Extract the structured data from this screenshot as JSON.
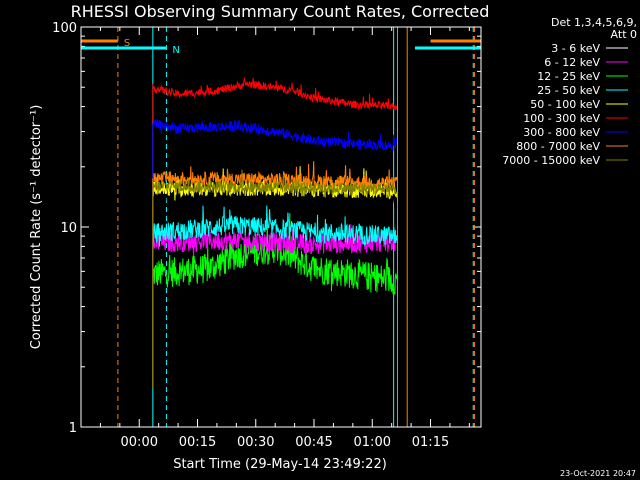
{
  "chart_data": {
    "type": "line",
    "title": "RHESSI Observing Summary Count Rates, Corrected",
    "xlabel": "Start Time (29-May-14 23:49:22)",
    "ylabel": "Corrected Count Rate (s⁻¹ detector⁻¹)",
    "y_scale": "log",
    "ylim": [
      1,
      100
    ],
    "xlim_minutes": [
      -15,
      88
    ],
    "x_ticks": [
      {
        "m": 0,
        "label": "00:00"
      },
      {
        "m": 15,
        "label": "00:15"
      },
      {
        "m": 30,
        "label": "00:30"
      },
      {
        "m": 45,
        "label": "00:45"
      },
      {
        "m": 60,
        "label": "01:00"
      },
      {
        "m": 75,
        "label": "01:15"
      }
    ],
    "y_ticks": [
      {
        "v": 1,
        "label": "1"
      },
      {
        "v": 10,
        "label": "10"
      },
      {
        "v": 100,
        "label": "100"
      }
    ],
    "legend_header": [
      "Det 1,3,4,5,6,9,",
      "Att 0"
    ],
    "legend_position": "top-right, outside plot",
    "series": [
      {
        "name": "3 - 6 keV",
        "color": "#000000",
        "base": 14.5,
        "spread": 0.12,
        "profile": [
          [
            3,
            14.5
          ],
          [
            20,
            15
          ],
          [
            40,
            14.5
          ],
          [
            55,
            13.8
          ],
          [
            66,
            13.5
          ]
        ]
      },
      {
        "name": "6 - 12 keV",
        "color": "#ff00ff",
        "base": 8.3,
        "spread": 0.1,
        "profile": [
          [
            3,
            8.3
          ],
          [
            25,
            8.6
          ],
          [
            45,
            8.2
          ],
          [
            66,
            8.4
          ]
        ]
      },
      {
        "name": "12 - 25 keV",
        "color": "#00ff00",
        "base": 6.0,
        "spread": 0.15,
        "profile": [
          [
            3,
            5.8
          ],
          [
            18,
            6.2
          ],
          [
            25,
            7.3
          ],
          [
            35,
            7.8
          ],
          [
            45,
            6.2
          ],
          [
            66,
            5.4
          ]
        ]
      },
      {
        "name": "25 - 50 keV",
        "color": "#00ffff",
        "base": 9.5,
        "spread": 0.1,
        "profile": [
          [
            3,
            9.3
          ],
          [
            25,
            10.2
          ],
          [
            45,
            9.4
          ],
          [
            66,
            9.0
          ]
        ]
      },
      {
        "name": "50 - 100 keV",
        "color": "#ffff00",
        "base": 15.0,
        "spread": 0.08,
        "profile": [
          [
            3,
            15.5
          ],
          [
            30,
            15.6
          ],
          [
            66,
            15.2
          ]
        ]
      },
      {
        "name": "100 - 300 keV",
        "color": "#ff0000",
        "base": 43,
        "spread": 0.04,
        "profile": [
          [
            3,
            50
          ],
          [
            10,
            46
          ],
          [
            20,
            48
          ],
          [
            28,
            52
          ],
          [
            40,
            48
          ],
          [
            45,
            44
          ],
          [
            55,
            41
          ],
          [
            66,
            40
          ]
        ]
      },
      {
        "name": "300 - 800 keV",
        "color": "#0000ff",
        "base": 31,
        "spread": 0.05,
        "profile": [
          [
            3,
            33
          ],
          [
            10,
            31
          ],
          [
            25,
            32
          ],
          [
            35,
            30
          ],
          [
            45,
            27
          ],
          [
            55,
            26
          ],
          [
            66,
            25.5
          ]
        ]
      },
      {
        "name": "800 - 7000 keV",
        "color": "#ff8000",
        "base": 17,
        "spread": 0.07,
        "profile": [
          [
            3,
            17.5
          ],
          [
            30,
            17.3
          ],
          [
            66,
            16.5
          ]
        ]
      },
      {
        "name": "7000 - 15000 keV",
        "color": "#808000",
        "base": 16,
        "spread": 0.06,
        "profile": [
          [
            3,
            16
          ],
          [
            66,
            15.5
          ]
        ]
      }
    ],
    "interval_marks": [
      {
        "label": "S",
        "color": "#ff8000",
        "start": -15,
        "end": -5.5,
        "y": 95,
        "lane": 0
      },
      {
        "label": "N",
        "color": "#00ffff",
        "start": -15,
        "end": 7,
        "y": 80,
        "lane": 1
      },
      {
        "label": "",
        "color": "#ff8000",
        "start": 75,
        "end": 88,
        "y": 95,
        "lane": 0
      },
      {
        "label": "",
        "color": "#00ffff",
        "start": 71,
        "end": 88,
        "y": 80,
        "lane": 1
      }
    ],
    "vertical_lines": [
      {
        "m": -5.5,
        "color": "#ff8000",
        "style": "dashed"
      },
      {
        "m": 3.5,
        "color": "#00ffff",
        "style": "solid"
      },
      {
        "m": 7,
        "color": "#00ffff",
        "style": "dashed"
      },
      {
        "m": 65.5,
        "color": "#00ffff",
        "style": "solid"
      },
      {
        "m": 66.5,
        "color": "#ff8000",
        "style": "solid"
      },
      {
        "m": 69,
        "color": "#ff8000",
        "style": "solid"
      },
      {
        "m": 86,
        "color": "#00ffff",
        "style": "dashed"
      },
      {
        "m": 86.3,
        "color": "#ff8000",
        "style": "dashed"
      }
    ],
    "data_span_minutes": [
      3.5,
      66.3
    ]
  },
  "footer": {
    "timestamp": "23-Oct-2021 20:47"
  }
}
